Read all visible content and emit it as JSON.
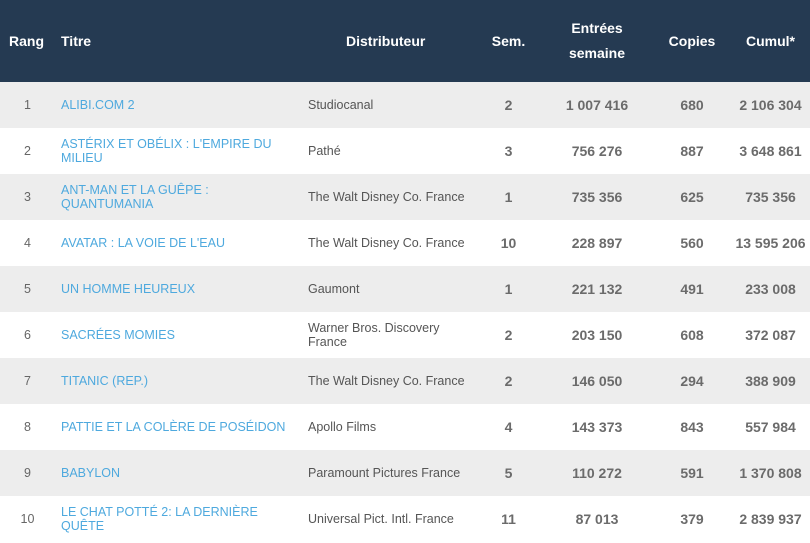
{
  "table": {
    "headers": {
      "rang": "Rang",
      "titre": "Titre",
      "distributeur": "Distributeur",
      "sem": "Sem.",
      "entrees_line1": "Entrées",
      "entrees_line2": "semaine",
      "copies": "Copies",
      "cumul": "Cumul*"
    },
    "rows": [
      {
        "rang": "1",
        "titre": "ALIBI.COM 2",
        "distributeur": "Studiocanal",
        "sem": "2",
        "entrees": "1 007 416",
        "copies": "680",
        "cumul": "2 106 304"
      },
      {
        "rang": "2",
        "titre": "ASTÉRIX ET OBÉLIX : L'EMPIRE DU MILIEU",
        "distributeur": "Pathé",
        "sem": "3",
        "entrees": "756 276",
        "copies": "887",
        "cumul": "3 648 861"
      },
      {
        "rang": "3",
        "titre": "ANT-MAN ET LA GUÊPE : QUANTUMANIA",
        "distributeur": "The Walt Disney Co. France",
        "sem": "1",
        "entrees": "735 356",
        "copies": "625",
        "cumul": "735 356"
      },
      {
        "rang": "4",
        "titre": "AVATAR : LA VOIE DE L'EAU",
        "distributeur": "The Walt Disney Co. France",
        "sem": "10",
        "entrees": "228 897",
        "copies": "560",
        "cumul": "13 595 206"
      },
      {
        "rang": "5",
        "titre": "UN HOMME HEUREUX",
        "distributeur": "Gaumont",
        "sem": "1",
        "entrees": "221 132",
        "copies": "491",
        "cumul": "233 008"
      },
      {
        "rang": "6",
        "titre": "SACRÉES MOMIES",
        "distributeur": "Warner Bros. Discovery France",
        "sem": "2",
        "entrees": "203 150",
        "copies": "608",
        "cumul": "372 087"
      },
      {
        "rang": "7",
        "titre": "TITANIC (REP.)",
        "distributeur": "The Walt Disney Co. France",
        "sem": "2",
        "entrees": "146 050",
        "copies": "294",
        "cumul": "388 909"
      },
      {
        "rang": "8",
        "titre": "PATTIE ET LA COLÈRE DE POSÉIDON",
        "distributeur": "Apollo Films",
        "sem": "4",
        "entrees": "143 373",
        "copies": "843",
        "cumul": "557 984"
      },
      {
        "rang": "9",
        "titre": "BABYLON",
        "distributeur": "Paramount Pictures France",
        "sem": "5",
        "entrees": "110 272",
        "copies": "591",
        "cumul": "1 370 808"
      },
      {
        "rang": "10",
        "titre": "LE CHAT POTTÉ 2: LA DERNIÈRE QUÊTE",
        "distributeur": "Universal Pict. Intl. France",
        "sem": "11",
        "entrees": "87 013",
        "copies": "379",
        "cumul": "2 839 937"
      }
    ]
  },
  "colors": {
    "header_background": "#253a52",
    "header_text": "#ffffff",
    "title_link": "#4ea9de",
    "row_stripe": "#ededed",
    "row_plain": "#ffffff",
    "body_text": "#555555"
  }
}
